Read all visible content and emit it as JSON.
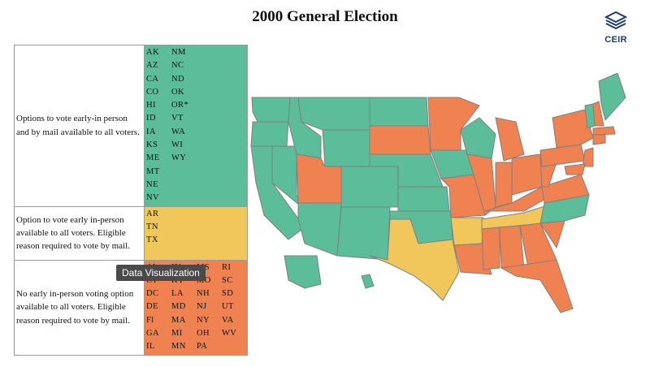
{
  "title": "2000 General Election",
  "logo": {
    "name": "CEIR"
  },
  "colors": {
    "green": "#5cbd9a",
    "yellow": "#f1c75b",
    "orange": "#ef8250"
  },
  "legend": [
    {
      "category": "green",
      "description": "Options to vote early-in person and by mail available to all voters.",
      "states": [
        "AK",
        "NM",
        "AZ",
        "NC",
        "CA",
        "ND",
        "CO",
        "OK",
        "HI",
        "OR*",
        "ID",
        "VT",
        "IA",
        "WA",
        "KS",
        "WI",
        "ME",
        "WY",
        "MT",
        "",
        "NE",
        "",
        "NV",
        ""
      ]
    },
    {
      "category": "yellow",
      "description": "Option to vote early in-person available to all voters. Eligible reason required to vote by mail.",
      "states": [
        "AR",
        "TN",
        "TX"
      ]
    },
    {
      "category": "orange",
      "description": "No early in-person voting option available to all voters. Eligible reason required to vote by mail.",
      "states": [
        "AL",
        "IN",
        "MS",
        "RI",
        "CT",
        "KY",
        "MO",
        "SC",
        "DC",
        "LA",
        "NH",
        "SD",
        "DE",
        "MD",
        "NJ",
        "UT",
        "Fl",
        "MA",
        "NY",
        "VA",
        "GA",
        "MI",
        "OH",
        "WV",
        "IL",
        "MN",
        "PA",
        ""
      ]
    }
  ],
  "tooltip": "Data Visualization",
  "map": {
    "type": "choropleth",
    "region": "United States"
  }
}
